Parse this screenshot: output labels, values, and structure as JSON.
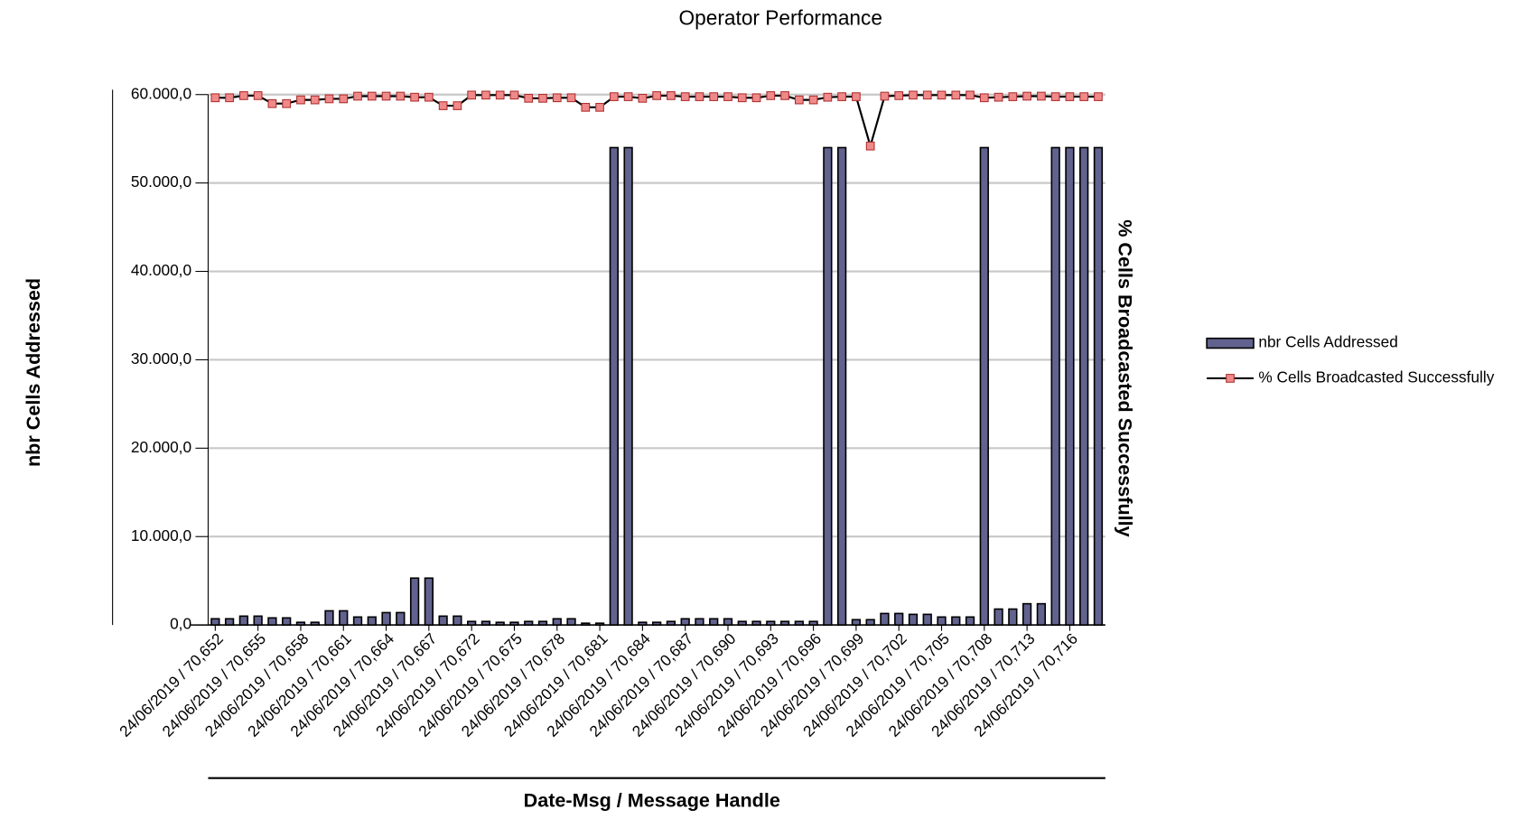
{
  "chart_data": {
    "type": "combo",
    "title": "Operator Performance",
    "x_label": "Date-Msg / Message Handle",
    "y_label": "nbr Cells Addressed",
    "y2_label": "% Cells Broadcasted Successfully",
    "categories": [
      "24/06/2019 / 70,652",
      null,
      null,
      "24/06/2019 / 70,655",
      null,
      null,
      "24/06/2019 / 70,658",
      null,
      null,
      "24/06/2019 / 70,661",
      null,
      null,
      "24/06/2019 / 70,664",
      null,
      null,
      "24/06/2019 / 70,667",
      null,
      null,
      "24/06/2019 / 70,672",
      null,
      null,
      "24/06/2019 / 70,675",
      null,
      null,
      "24/06/2019 / 70,678",
      null,
      null,
      "24/06/2019 / 70,681",
      null,
      null,
      "24/06/2019 / 70,684",
      null,
      null,
      "24/06/2019 / 70,687",
      null,
      null,
      "24/06/2019 / 70,690",
      null,
      null,
      "24/06/2019 / 70,693",
      null,
      null,
      "24/06/2019 / 70,696",
      null,
      null,
      "24/06/2019 / 70,699",
      null,
      null,
      "24/06/2019 / 70,702",
      null,
      null,
      "24/06/2019 / 70,705",
      null,
      null,
      "24/06/2019 / 70,708",
      null,
      null,
      "24/06/2019 / 70,713",
      null,
      null,
      "24/06/2019 / 70,716",
      null,
      null
    ],
    "series": [
      {
        "name": "nbr Cells Addressed",
        "type": "bar",
        "color": "#62628f",
        "values": [
          700,
          700,
          1000,
          1000,
          800,
          800,
          300,
          300,
          1600,
          1600,
          900,
          900,
          1400,
          1400,
          5300,
          5300,
          1000,
          1000,
          400,
          400,
          300,
          300,
          400,
          400,
          700,
          700,
          200,
          200,
          54000,
          54000,
          300,
          300,
          400,
          700,
          700,
          700,
          700,
          400,
          400,
          400,
          400,
          400,
          400,
          54000,
          54000,
          600,
          600,
          1300,
          1300,
          1200,
          1200,
          900,
          900,
          900,
          54000,
          1800,
          1800,
          2400,
          2400,
          54000,
          54000,
          54000,
          54000
        ]
      },
      {
        "name": "% Cells Broadcasted Successfully",
        "type": "line",
        "axis": "y2",
        "color": "#000000",
        "marker_color": "#f08a8a",
        "values": [
          99.4,
          99.4,
          99.8,
          99.8,
          98.3,
          98.3,
          99.0,
          99.0,
          99.2,
          99.2,
          99.7,
          99.7,
          99.7,
          99.7,
          99.5,
          99.5,
          97.9,
          97.9,
          99.9,
          99.9,
          99.9,
          99.9,
          99.3,
          99.3,
          99.4,
          99.4,
          97.6,
          97.6,
          99.6,
          99.6,
          99.3,
          99.8,
          99.8,
          99.6,
          99.6,
          99.6,
          99.6,
          99.4,
          99.4,
          99.8,
          99.8,
          99.0,
          99.0,
          99.5,
          99.6,
          99.6,
          90.3,
          99.7,
          99.8,
          99.9,
          99.9,
          99.9,
          99.9,
          99.9,
          99.4,
          99.5,
          99.6,
          99.7,
          99.7,
          99.6,
          99.6,
          99.6,
          99.6
        ]
      }
    ],
    "ylim": [
      0,
      60000
    ],
    "yticks": [
      {
        "value": 0,
        "label": "0,0"
      },
      {
        "value": 10000,
        "label": "10.000,0"
      },
      {
        "value": 20000,
        "label": "20.000,0"
      },
      {
        "value": 30000,
        "label": "30.000,0"
      },
      {
        "value": 40000,
        "label": "40.000,0"
      },
      {
        "value": 50000,
        "label": "50.000,0"
      },
      {
        "value": 60000,
        "label": "60.000,0"
      }
    ],
    "y2lim": [
      0,
      100
    ],
    "grid": true,
    "legend": "right"
  }
}
